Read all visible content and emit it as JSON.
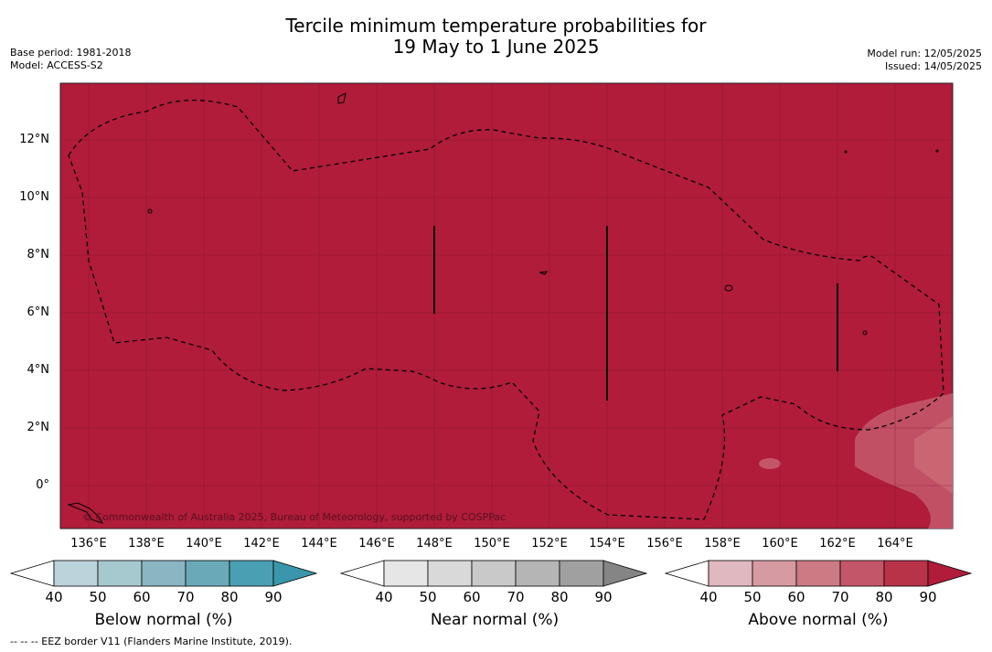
{
  "header": {
    "title_line1": "Tercile minimum temperature probabilities for",
    "title_line2": "19 May to 1 June 2025",
    "base_period": "Base period: 1981-2018",
    "model": "Model: ACCESS-S2",
    "model_run": "Model run: 12/05/2025",
    "issued": "Issued: 14/05/2025"
  },
  "map": {
    "lat_labels": [
      "12°N",
      "10°N",
      "8°N",
      "6°N",
      "4°N",
      "2°N",
      "0°"
    ],
    "lon_labels": [
      "136°E",
      "138°E",
      "140°E",
      "142°E",
      "144°E",
      "146°E",
      "148°E",
      "150°E",
      "152°E",
      "154°E",
      "156°E",
      "158°E",
      "160°E",
      "162°E",
      "164°E"
    ],
    "copyright": "© Commonwealth of Australia 2025, Bureau of Meteorology, supported by COSPPac",
    "fill_color": "#b01c3a"
  },
  "colorbars": [
    {
      "label": "Below normal (%)",
      "ticks": [
        "40",
        "50",
        "60",
        "70",
        "80",
        "90"
      ],
      "colors": [
        "#ffffff",
        "#bcd3db",
        "#a6c8cf",
        "#8ab5c2",
        "#6aaab8",
        "#4aa0b2",
        "#3a96aa"
      ]
    },
    {
      "label": "Near normal (%)",
      "ticks": [
        "40",
        "50",
        "60",
        "70",
        "80",
        "90"
      ],
      "colors": [
        "#ffffff",
        "#e6e6e6",
        "#d9d9d9",
        "#c9c9c9",
        "#b5b5b5",
        "#a0a0a0",
        "#858585"
      ]
    },
    {
      "label": "Above normal (%)",
      "ticks": [
        "40",
        "50",
        "60",
        "70",
        "80",
        "90"
      ],
      "colors": [
        "#ffffff",
        "#e0b8bf",
        "#d69aa2",
        "#cc7a84",
        "#c4566a",
        "#b83348",
        "#b01c3a"
      ]
    }
  ],
  "footnote": "--  --  -- EEZ border V11 (Flanders Marine Institute, 2019)."
}
